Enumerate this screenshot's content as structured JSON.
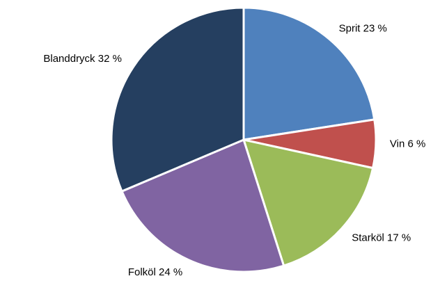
{
  "chart_data": {
    "type": "pie",
    "categories": [
      "Sprit",
      "Vin",
      "Starköl",
      "Folköl",
      "Blanddryck"
    ],
    "values": [
      23,
      6,
      17,
      24,
      32
    ],
    "value_labels": [
      "23 %",
      "6 %",
      "17 %",
      "24 %",
      "32 %"
    ],
    "colors": [
      "#4f81bd",
      "#c0504d",
      "#9bbb59",
      "#8064a2",
      "#253f60"
    ]
  }
}
